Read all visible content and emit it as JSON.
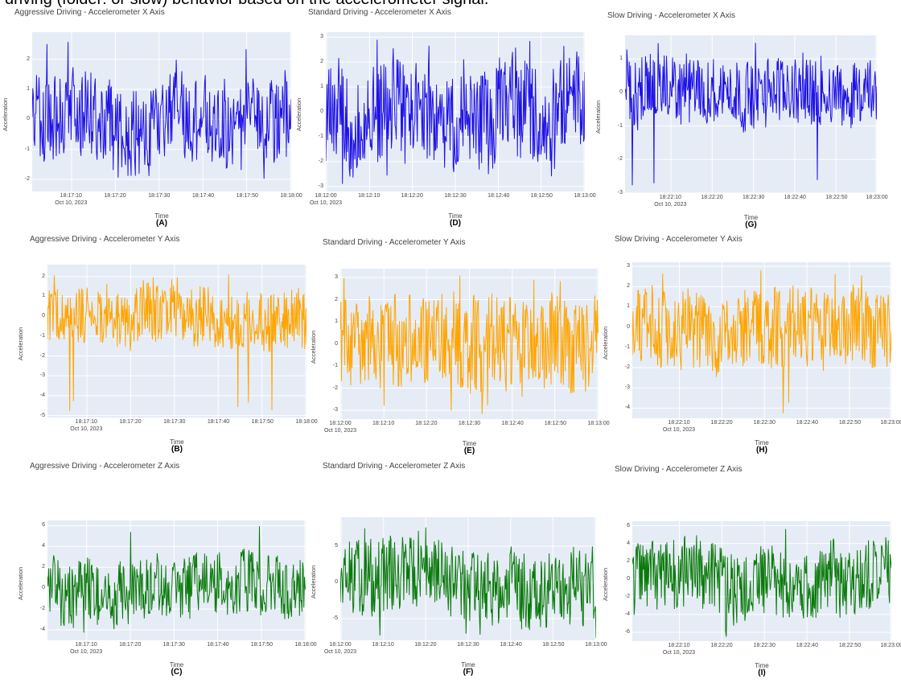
{
  "caption": "driving (folder: or slow) behavior based on the accelerometer signal.",
  "colors": {
    "plot_bg": "#e5ecf6",
    "grid": "#ffffff",
    "x_axis": "#1f12e6",
    "y_axis": "#ffa500",
    "z_axis": "#0a7a0a"
  },
  "chart_data": [
    {
      "id": "A",
      "type": "line",
      "title": "Aggressive Driving - Accelerometer X Axis",
      "xlabel": "Time",
      "ylabel": "Acceleration",
      "panel_label": "(A)",
      "color": "#1f12e6",
      "ylim": [
        -2.4,
        2.9
      ],
      "yticks": [
        "2",
        "1",
        "0",
        "-1",
        "-2"
      ],
      "yvals": [
        2,
        1,
        0,
        -1,
        -2
      ],
      "xticks": [
        "18:17:10",
        "18:17:20",
        "18:17:30",
        "18:17:40",
        "18:17:50",
        "18:18:00"
      ],
      "xtick_pos": [
        0.15,
        0.32,
        0.49,
        0.66,
        0.83,
        1.0
      ],
      "date_label": "Oct 10, 2023",
      "x_range": [
        "18:17:01",
        "18:18:01"
      ],
      "y_summary": {
        "min": -2.2,
        "max": 2.7,
        "level": 0.0
      }
    },
    {
      "id": "D",
      "type": "line",
      "title": "Standard Driving - Accelerometer X Axis",
      "xlabel": "Time",
      "ylabel": "Acceleration",
      "panel_label": "(D)",
      "color": "#1f12e6",
      "ylim": [
        -3.2,
        3.2
      ],
      "yticks": [
        "3",
        "2",
        "1",
        "0",
        "-1",
        "-2",
        "-3"
      ],
      "yvals": [
        3,
        2,
        1,
        0,
        -1,
        -2,
        -3
      ],
      "xticks": [
        "18:12:00",
        "18:12:10",
        "18:12:20",
        "18:12:30",
        "18:12:40",
        "18:12:50",
        "18:13:00"
      ],
      "xtick_pos": [
        0.0,
        0.167,
        0.333,
        0.5,
        0.667,
        0.833,
        1.0
      ],
      "date_label": "Oct 10, 2023",
      "x_range": [
        "18:12:00",
        "18:13:00"
      ],
      "y_summary": {
        "min": -2.9,
        "max": 2.9,
        "level": 0.0
      }
    },
    {
      "id": "G",
      "type": "line",
      "title": "Slow Driving - Accelerometer X Axis",
      "xlabel": "Time",
      "ylabel": "Acceleration",
      "panel_label": "(G)",
      "color": "#1f12e6",
      "ylim": [
        -3.0,
        1.7
      ],
      "yticks": [
        "1",
        "0",
        "-1",
        "-2",
        "-3"
      ],
      "yvals": [
        1,
        0,
        -1,
        -2,
        -3
      ],
      "xticks": [
        "18:22:10",
        "18:22:20",
        "18:22:30",
        "18:22:40",
        "18:22:50",
        "18:23:00"
      ],
      "xtick_pos": [
        0.18,
        0.345,
        0.51,
        0.675,
        0.84,
        1.0
      ],
      "date_label": "Oct 10, 2023",
      "x_range": [
        "18:22:01",
        "18:23:01"
      ],
      "y_summary": {
        "min": -2.9,
        "max": 1.5,
        "level": 0.0
      }
    },
    {
      "id": "B",
      "type": "line",
      "title": "Aggressive Driving - Accelerometer Y Axis",
      "xlabel": "Time",
      "ylabel": "Acceleration",
      "panel_label": "(B)",
      "color": "#ffa500",
      "ylim": [
        -5.1,
        2.6
      ],
      "yticks": [
        "2",
        "1",
        "0",
        "-1",
        "-2",
        "-3",
        "-4",
        "-5"
      ],
      "yvals": [
        2,
        1,
        0,
        -1,
        -2,
        -3,
        -4,
        -5
      ],
      "xticks": [
        "18:17:10",
        "18:17:20",
        "18:17:30",
        "18:17:40",
        "18:17:50",
        "18:18:00"
      ],
      "xtick_pos": [
        0.15,
        0.32,
        0.49,
        0.66,
        0.83,
        1.0
      ],
      "date_label": "Oct 10, 2023",
      "x_range": [
        "18:17:01",
        "18:18:01"
      ],
      "y_summary": {
        "min": -4.8,
        "max": 2.2,
        "level": 0.0
      }
    },
    {
      "id": "E",
      "type": "line",
      "title": "Standard Driving - Accelerometer Y Axis",
      "xlabel": "Time",
      "ylabel": "Acceleration",
      "panel_label": "(E)",
      "color": "#ffa500",
      "ylim": [
        -3.4,
        3.4
      ],
      "yticks": [
        "3",
        "2",
        "1",
        "0",
        "-1",
        "-2",
        "-3"
      ],
      "yvals": [
        3,
        2,
        1,
        0,
        -1,
        -2,
        -3
      ],
      "xticks": [
        "18:12:00",
        "18:12:10",
        "18:12:20",
        "18:12:30",
        "18:12:40",
        "18:12:50",
        "18:13:00"
      ],
      "xtick_pos": [
        0.0,
        0.167,
        0.333,
        0.5,
        0.667,
        0.833,
        1.0
      ],
      "date_label": "Oct 10, 2023",
      "x_range": [
        "18:12:00",
        "18:13:00"
      ],
      "y_summary": {
        "min": -3.2,
        "max": 3.1,
        "level": 0.0
      }
    },
    {
      "id": "H",
      "type": "line",
      "title": "Slow Driving - Accelerometer Y Axis",
      "xlabel": "Time",
      "ylabel": "Acceleration",
      "panel_label": "(H)",
      "color": "#ffa500",
      "ylim": [
        -4.5,
        3.2
      ],
      "yticks": [
        "3",
        "2",
        "1",
        "0",
        "-1",
        "-2",
        "-3",
        "-4"
      ],
      "yvals": [
        3,
        2,
        1,
        0,
        -1,
        -2,
        -3,
        -4
      ],
      "xticks": [
        "18:22:10",
        "18:22:20",
        "18:22:30",
        "18:22:40",
        "18:22:50",
        "18:23:00"
      ],
      "xtick_pos": [
        0.18,
        0.345,
        0.51,
        0.675,
        0.84,
        1.0
      ],
      "date_label": "Oct 10, 2023",
      "x_range": [
        "18:22:01",
        "18:23:01"
      ],
      "y_summary": {
        "min": -4.3,
        "max": 2.8,
        "level": 0.0
      }
    },
    {
      "id": "C",
      "type": "line",
      "title": "Aggressive Driving - Accelerometer Z Axis",
      "xlabel": "Time",
      "ylabel": "Acceleration",
      "panel_label": "(C)",
      "color": "#0a7a0a",
      "ylim": [
        -5.0,
        6.5
      ],
      "yticks": [
        "6",
        "4",
        "2",
        "0",
        "-2",
        "-4"
      ],
      "yvals": [
        6,
        4,
        2,
        0,
        -2,
        -4
      ],
      "xticks": [
        "18:17:10",
        "18:17:20",
        "18:17:30",
        "18:17:40",
        "18:17:50",
        "18:18:00"
      ],
      "xtick_pos": [
        0.15,
        0.32,
        0.49,
        0.66,
        0.83,
        1.0
      ],
      "date_label": "Oct 10, 2023",
      "x_range": [
        "18:17:01",
        "18:18:01"
      ],
      "y_summary": {
        "min": -4.4,
        "max": 6.0,
        "level": 0.0
      }
    },
    {
      "id": "F",
      "type": "line",
      "title": "Standard Driving - Accelerometer Z Axis",
      "xlabel": "Time",
      "ylabel": "Acceleration",
      "panel_label": "(F)",
      "color": "#0a7a0a",
      "ylim": [
        -8.0,
        9.0
      ],
      "yticks": [
        "5",
        "0",
        "-5"
      ],
      "yvals": [
        5,
        0,
        -5
      ],
      "xticks": [
        "18:12:00",
        "18:12:10",
        "18:12:20",
        "18:12:30",
        "18:12:40",
        "18:12:50",
        "18:13:00"
      ],
      "xtick_pos": [
        0.0,
        0.167,
        0.333,
        0.5,
        0.667,
        0.833,
        1.0
      ],
      "date_label": "Oct 10, 2023",
      "x_range": [
        "18:12:00",
        "18:13:00"
      ],
      "y_summary": {
        "min": -7.8,
        "max": 8.6,
        "level": 0.0
      }
    },
    {
      "id": "I",
      "type": "line",
      "title": "Slow Driving - Accelerometer Z Axis",
      "xlabel": "Time",
      "ylabel": "Acceleration",
      "panel_label": "(I)",
      "color": "#0a7a0a",
      "ylim": [
        -7.0,
        6.5
      ],
      "yticks": [
        "6",
        "4",
        "2",
        "0",
        "-2",
        "-4",
        "-6"
      ],
      "yvals": [
        6,
        4,
        2,
        0,
        -2,
        -4,
        -6
      ],
      "xticks": [
        "18:22:10",
        "18:22:20",
        "18:22:30",
        "18:22:40",
        "18:22:50",
        "18:23:00"
      ],
      "xtick_pos": [
        0.18,
        0.345,
        0.51,
        0.675,
        0.84,
        1.0
      ],
      "date_label": "Oct 10, 2023",
      "x_range": [
        "18:22:01",
        "18:23:01"
      ],
      "y_summary": {
        "min": -6.6,
        "max": 5.8,
        "level": 0.0
      }
    }
  ]
}
